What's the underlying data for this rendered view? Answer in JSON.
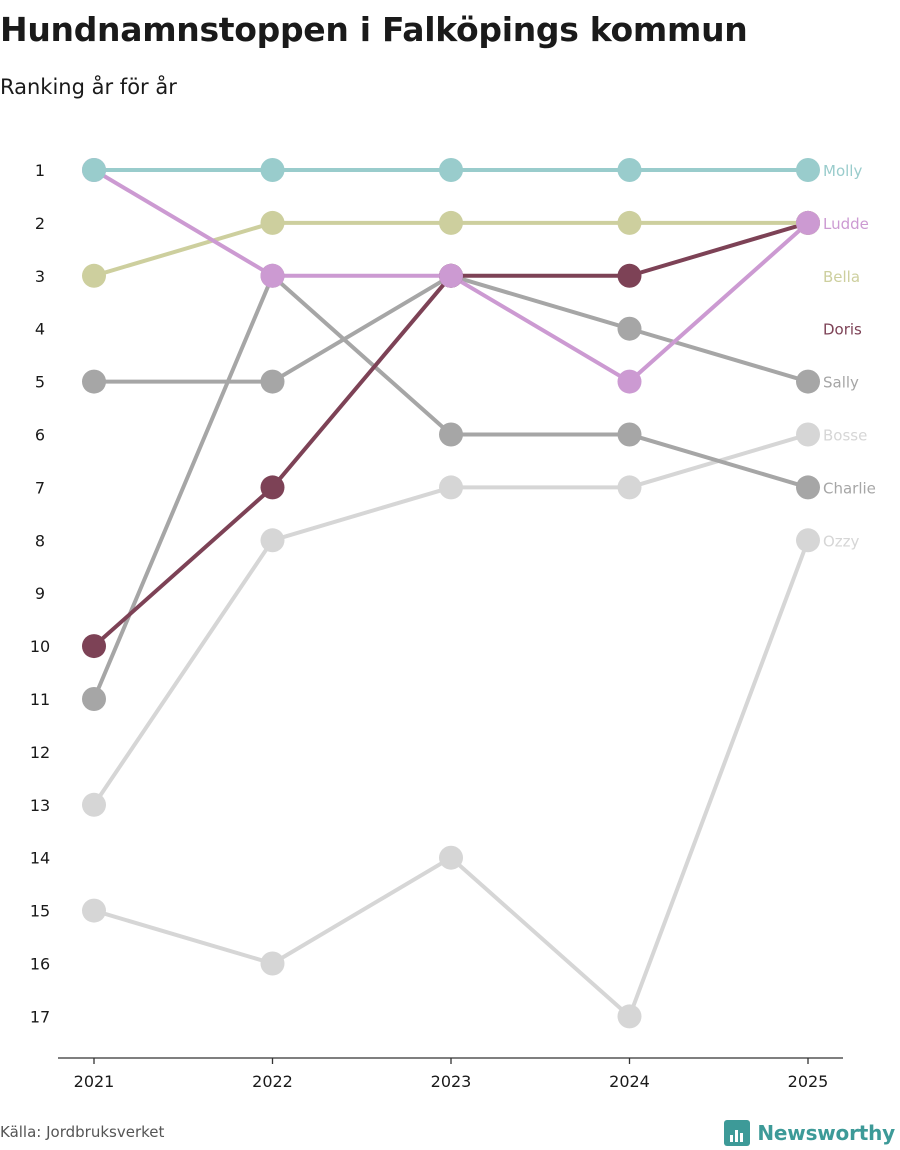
{
  "title": "Hundnamnstoppen i Falköpings kommun",
  "subtitle": "Ranking år för år",
  "source": "Källa: Jordbruksverket",
  "brand": "Newsworthy",
  "chart_data": {
    "type": "line",
    "subtype": "bump",
    "title": "Hundnamnstoppen i Falköpings kommun",
    "subtitle": "Ranking år för år",
    "xlabel": "",
    "ylabel": "",
    "x": [
      "2021",
      "2022",
      "2023",
      "2024",
      "2025"
    ],
    "y_ticks": [
      1,
      2,
      3,
      4,
      5,
      6,
      7,
      8,
      9,
      10,
      11,
      12,
      13,
      14,
      15,
      16,
      17
    ],
    "ylim": [
      1,
      17
    ],
    "y_inverted": true,
    "grid": false,
    "legend": "end-labels-right",
    "series": [
      {
        "name": "Ozzy",
        "color": "#d6d6d6",
        "values": [
          15,
          16,
          14,
          17,
          8
        ]
      },
      {
        "name": "Bosse",
        "color": "#d6d6d6",
        "values": [
          13,
          8,
          7,
          7,
          6
        ]
      },
      {
        "name": "Charlie",
        "color": "#a6a6a6",
        "values": [
          11,
          3,
          6,
          6,
          7
        ]
      },
      {
        "name": "Sally",
        "color": "#a6a6a6",
        "values": [
          5,
          5,
          3,
          4,
          5
        ]
      },
      {
        "name": "Doris",
        "color": "#7d4256",
        "values": [
          10,
          7,
          3,
          3,
          2
        ]
      },
      {
        "name": "Bella",
        "color": "#cdcf9e",
        "values": [
          3,
          2,
          2,
          2,
          2
        ]
      },
      {
        "name": "Ludde",
        "color": "#cc9ad2",
        "values": [
          1,
          3,
          3,
          5,
          2
        ]
      },
      {
        "name": "Molly",
        "color": "#99cccc",
        "values": [
          1,
          1,
          1,
          1,
          1
        ]
      }
    ]
  }
}
